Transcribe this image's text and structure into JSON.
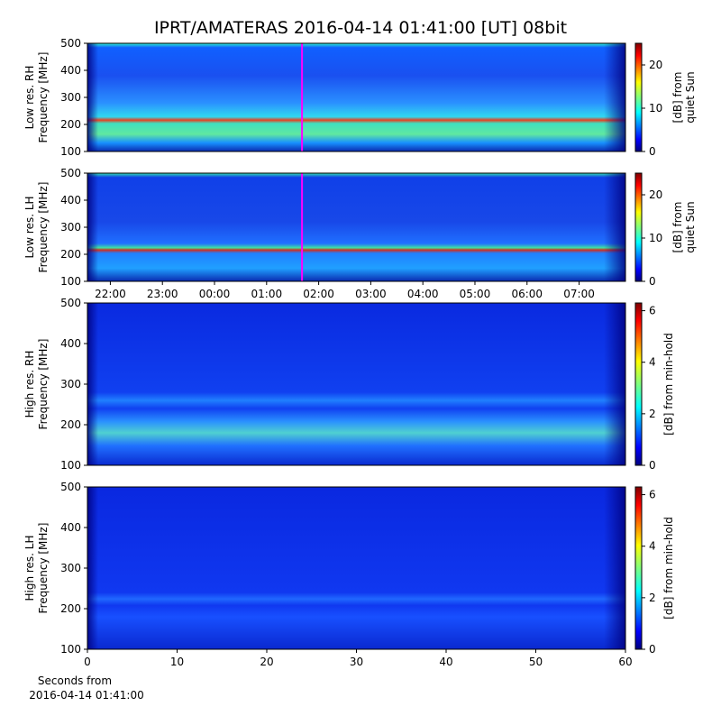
{
  "title": "IPRT/AMATERAS 2016-04-14 01:41:00 [UT]   08bit",
  "chart_data": [
    {
      "type": "heatmap",
      "ylabel": [
        "Low res. RH",
        "Frequency [MHz]"
      ],
      "xlim": [
        21.56,
        31.89
      ],
      "ylim": [
        100,
        500
      ],
      "yticks": [
        100,
        200,
        300,
        400,
        500
      ],
      "marker": 25.68,
      "marker_color": "#ff00ff",
      "colorbar_label": [
        "[dB] from",
        "quiet Sun"
      ],
      "clim": [
        0,
        25
      ],
      "cticks": [
        0,
        10,
        20
      ]
    },
    {
      "type": "heatmap",
      "ylabel": [
        "Low res. LH",
        "Frequency [MHz]"
      ],
      "xlim": [
        21.56,
        31.89
      ],
      "ylim": [
        100,
        500
      ],
      "yticks": [
        100,
        200,
        300,
        400,
        500
      ],
      "xticks": [
        {
          "value": 22,
          "label": "22:00"
        },
        {
          "value": 23,
          "label": "23:00"
        },
        {
          "value": 24,
          "label": "00:00"
        },
        {
          "value": 25,
          "label": "01:00"
        },
        {
          "value": 26,
          "label": "02:00"
        },
        {
          "value": 27,
          "label": "03:00"
        },
        {
          "value": 28,
          "label": "04:00"
        },
        {
          "value": 29,
          "label": "05:00"
        },
        {
          "value": 30,
          "label": "06:00"
        },
        {
          "value": 31,
          "label": "07:00"
        }
      ],
      "marker": 25.68,
      "marker_color": "#ff00ff",
      "colorbar_label": [
        "[dB] from",
        "quiet Sun"
      ],
      "clim": [
        0,
        25
      ],
      "cticks": [
        0,
        10,
        20
      ]
    },
    {
      "type": "heatmap",
      "ylabel": [
        "High res. RH",
        "Frequency [MHz]"
      ],
      "xlim": [
        0,
        60
      ],
      "ylim": [
        100,
        500
      ],
      "yticks": [
        100,
        200,
        300,
        400,
        500
      ],
      "colorbar_label": [
        "[dB] from min-hold"
      ],
      "clim": [
        0,
        6.3
      ],
      "cticks": [
        0,
        2,
        4,
        6
      ]
    },
    {
      "type": "heatmap",
      "ylabel": [
        "High res. LH",
        "Frequency [MHz]"
      ],
      "xlim": [
        0,
        60
      ],
      "ylim": [
        100,
        500
      ],
      "yticks": [
        100,
        200,
        300,
        400,
        500
      ],
      "xticks": [
        0,
        10,
        20,
        30,
        40,
        50,
        60
      ],
      "xlabel": [
        "Seconds from",
        "2016-04-14 01:41:00"
      ],
      "colorbar_label": [
        "[dB] from min-hold"
      ],
      "clim": [
        0,
        6.3
      ],
      "cticks": [
        0,
        2,
        4,
        6
      ]
    }
  ]
}
